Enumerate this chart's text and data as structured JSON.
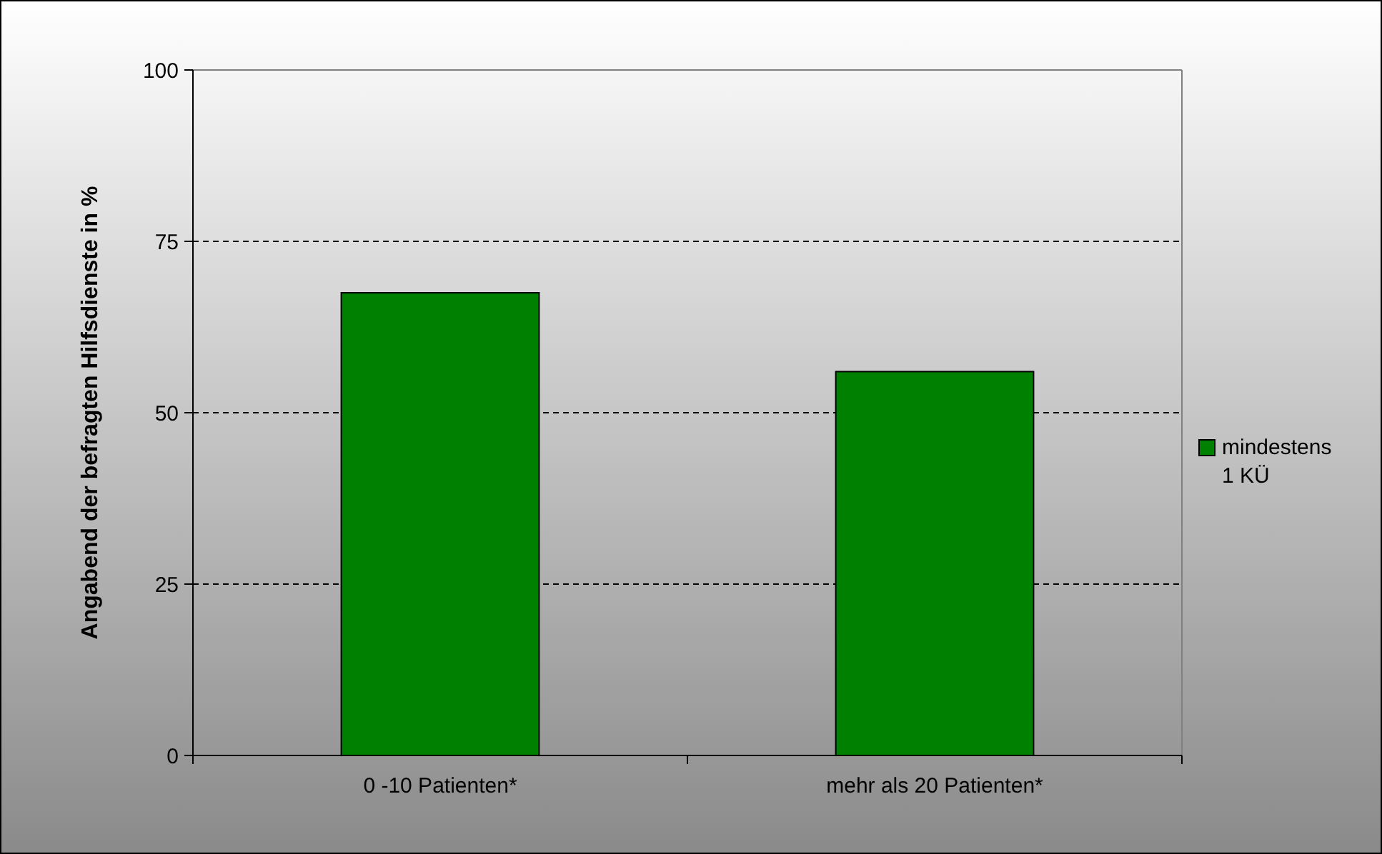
{
  "chart_data": {
    "type": "bar",
    "ylabel": "Angabend der befragten Hilfsdienste in %",
    "categories": [
      "0 -10 Patienten*",
      "mehr als 20 Patienten*"
    ],
    "series": [
      {
        "name": "mindestens 1 KÜ",
        "color": "#008000",
        "values": [
          67.5,
          56
        ]
      }
    ],
    "ylim": [
      0,
      100
    ],
    "yticks": [
      0,
      25,
      50,
      75,
      100
    ],
    "grid": "y",
    "legend": "right"
  }
}
